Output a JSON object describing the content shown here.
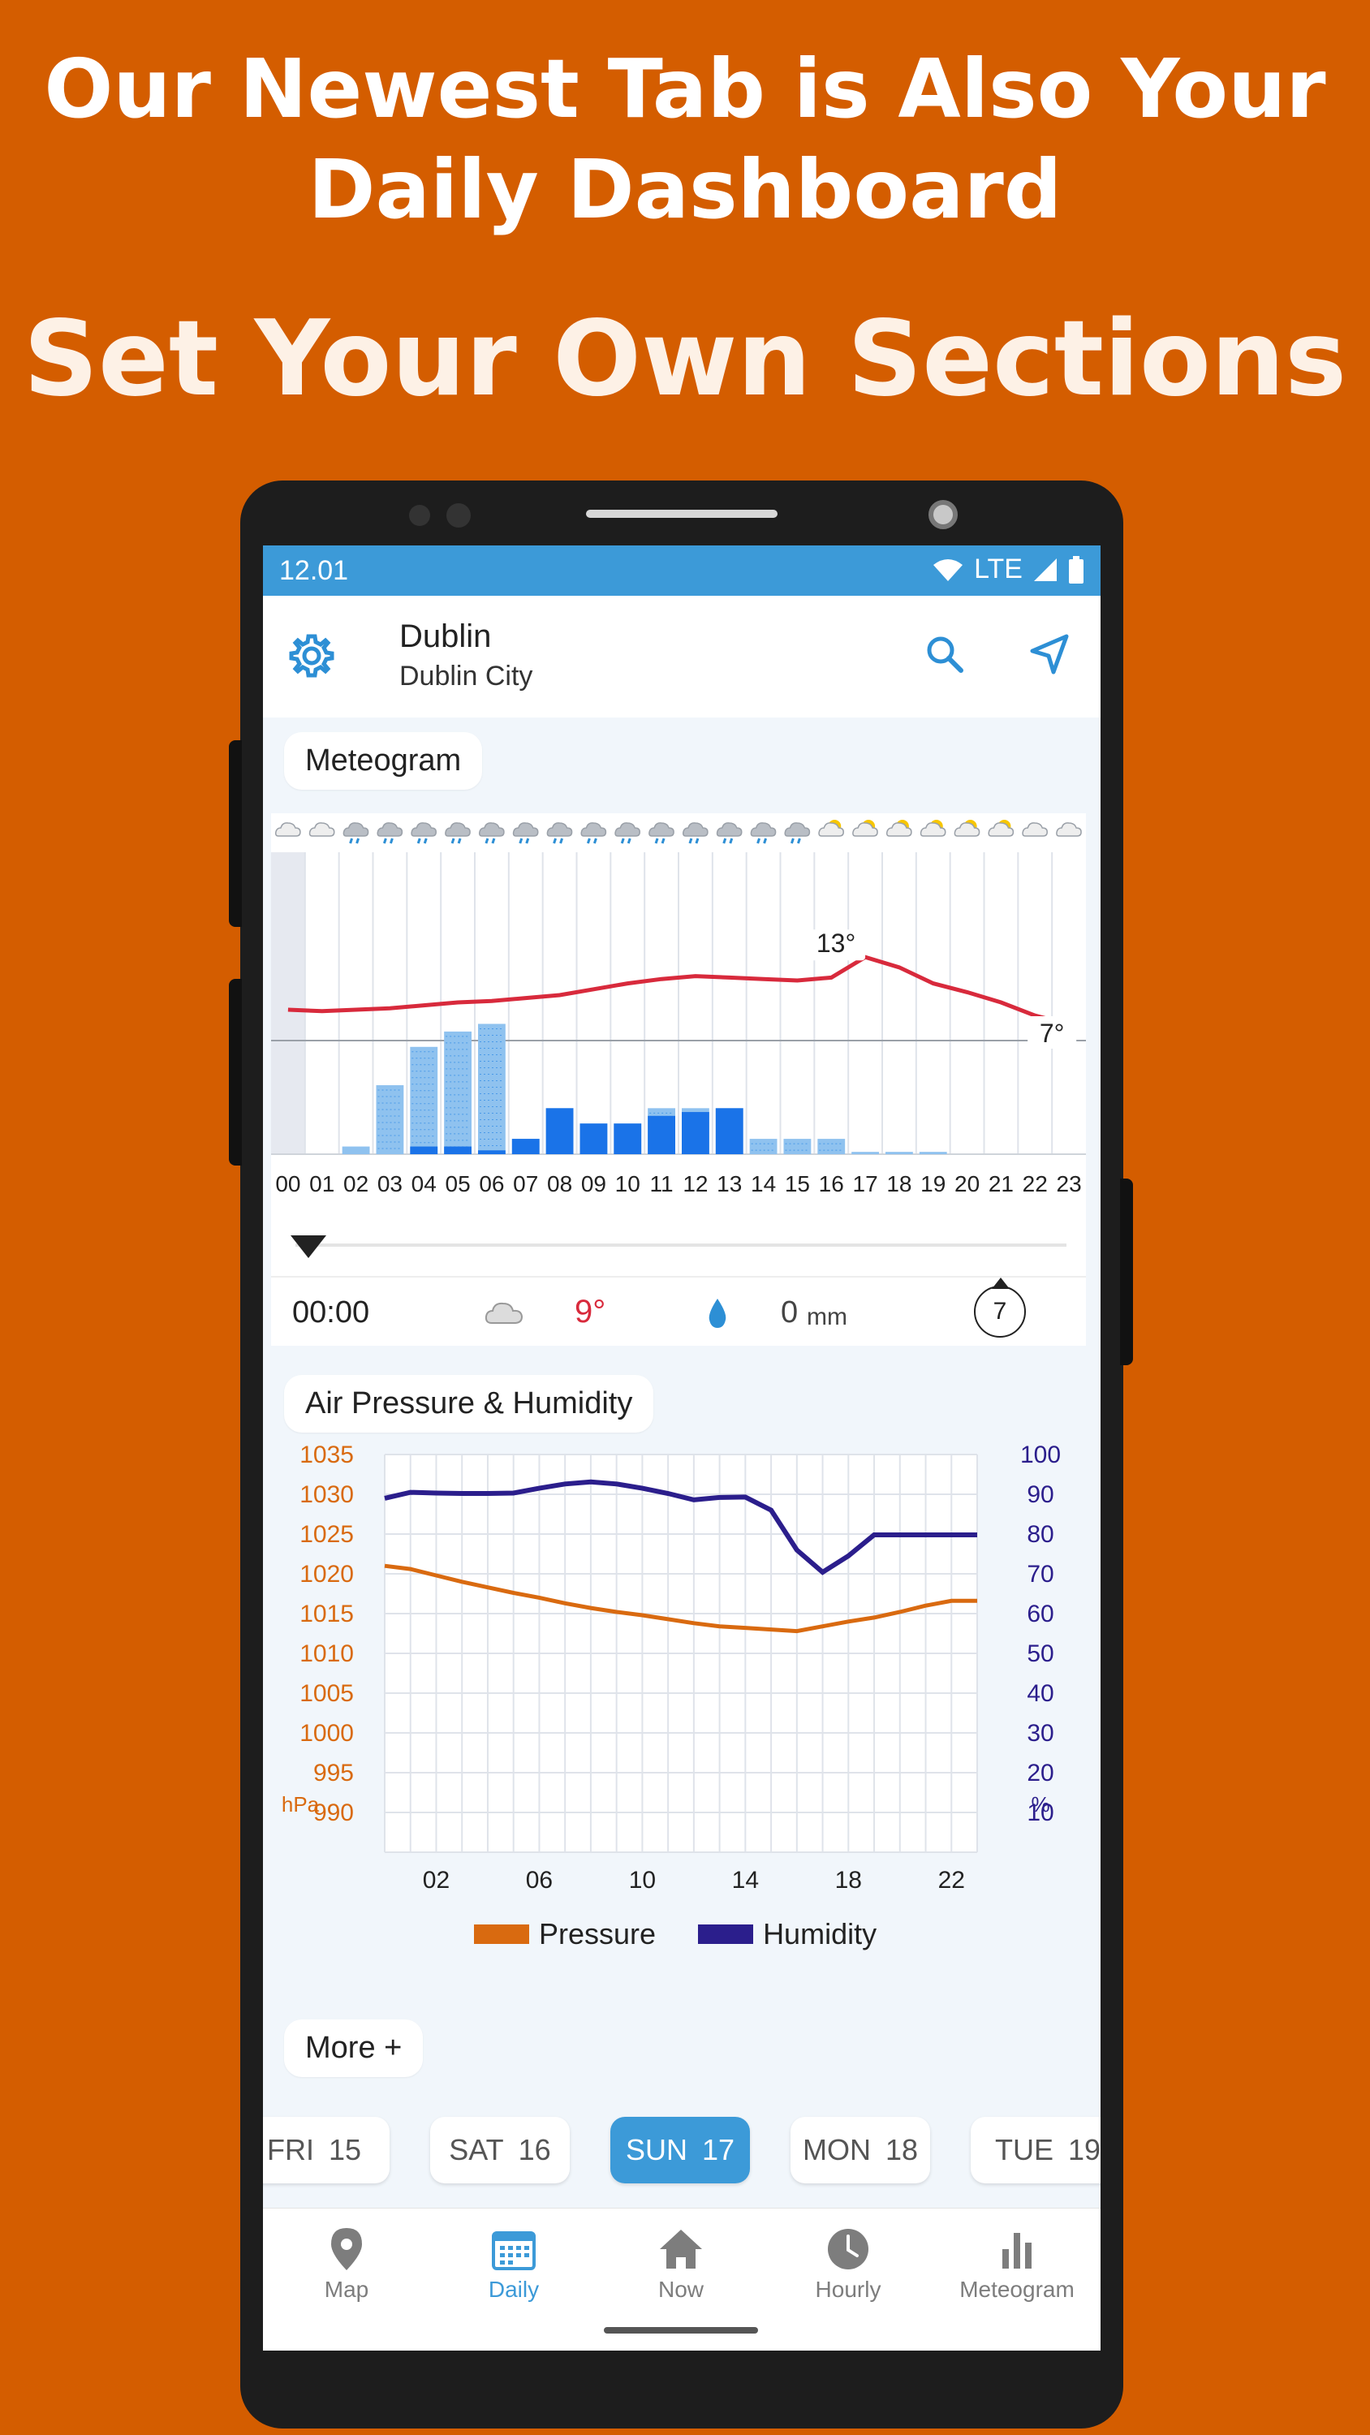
{
  "promo": {
    "headline_line1": "Our Newest Tab is Also Your",
    "headline_line2": "Daily Dashboard",
    "subheadline": "Set Your Own Sections"
  },
  "status_bar": {
    "time": "12.01",
    "network": "LTE"
  },
  "app_bar": {
    "city": "Dublin",
    "subtitle": "Dublin City"
  },
  "meteogram": {
    "section_title": "Meteogram",
    "hours": [
      "00",
      "01",
      "02",
      "03",
      "04",
      "05",
      "06",
      "07",
      "08",
      "09",
      "10",
      "11",
      "12",
      "13",
      "14",
      "15",
      "16",
      "17",
      "18",
      "19",
      "20",
      "21",
      "22",
      "23"
    ],
    "temperature_label_max": "13°",
    "temperature_label_min": "7°",
    "readout": {
      "time": "00:00",
      "temperature": "9°",
      "precip_value": "0",
      "precip_unit": "mm",
      "wind": "7"
    },
    "chart_data": {
      "type": "bar",
      "categories": [
        "00",
        "01",
        "02",
        "03",
        "04",
        "05",
        "06",
        "07",
        "08",
        "09",
        "10",
        "11",
        "12",
        "13",
        "14",
        "15",
        "16",
        "17",
        "18",
        "19",
        "20",
        "21",
        "22",
        "23"
      ],
      "series": [
        {
          "name": "Temperature",
          "type": "line",
          "values": [
            9,
            8.9,
            9,
            9.1,
            9.3,
            9.5,
            9.6,
            9.8,
            10,
            10.4,
            10.8,
            11.1,
            11.3,
            11.2,
            11.1,
            11,
            11.2,
            12.6,
            11.9,
            10.8,
            10.2,
            9.5,
            8.6,
            8
          ]
        },
        {
          "name": "Precipitation (light)",
          "type": "bar",
          "values": [
            0,
            0,
            0.1,
            0.9,
            1.4,
            1.6,
            1.7,
            0.2,
            0.6,
            0.4,
            0.4,
            0.6,
            0.6,
            0.6,
            0.2,
            0.2,
            0.2,
            0.03,
            0.03,
            0.03,
            0,
            0,
            0,
            0
          ]
        },
        {
          "name": "Precipitation (heavy)",
          "type": "bar",
          "values": [
            0,
            0,
            0,
            0,
            0.1,
            0.1,
            0.05,
            0.2,
            0.6,
            0.4,
            0.4,
            0.5,
            0.55,
            0.6,
            0,
            0,
            0,
            0,
            0,
            0,
            0,
            0,
            0,
            0
          ]
        }
      ],
      "weather_icons": [
        "cloudy",
        "cloudy",
        "rain",
        "rain",
        "rain",
        "rain",
        "rain",
        "rain",
        "rain",
        "rain",
        "rain",
        "rain",
        "rain",
        "rain",
        "rain",
        "rain",
        "sun-cloud",
        "sun-cloud",
        "sun-cloud",
        "sun-cloud",
        "sun-cloud",
        "sun-cloud",
        "cloudy",
        "cloudy"
      ]
    }
  },
  "pressure_humidity": {
    "section_title": "Air Pressure & Humidity",
    "left_axis_unit": "hPa",
    "right_axis_unit": "%",
    "legend_pressure": "Pressure",
    "legend_humidity": "Humidity",
    "colors": {
      "pressure": "#D96A10",
      "humidity": "#2B1E8C"
    },
    "chart_data": {
      "type": "line",
      "x": [
        0,
        1,
        2,
        3,
        4,
        5,
        6,
        7,
        8,
        9,
        10,
        11,
        12,
        13,
        14,
        15,
        16,
        17,
        18,
        19,
        20,
        21,
        22,
        23
      ],
      "x_ticks": [
        "02",
        "06",
        "10",
        "14",
        "18",
        "22"
      ],
      "y_left_ticks": [
        "1035",
        "1030",
        "1025",
        "1020",
        "1015",
        "1010",
        "1005",
        "1000",
        "995",
        "990"
      ],
      "y_right_ticks": [
        "100",
        "90",
        "80",
        "70",
        "60",
        "50",
        "40",
        "30",
        "20",
        "10"
      ],
      "ylim_left": [
        985,
        1035
      ],
      "ylim_right": [
        0,
        100
      ],
      "series": [
        {
          "name": "Pressure",
          "axis": "left",
          "values": [
            1021,
            1020.6,
            1019.8,
            1019,
            1018.3,
            1017.6,
            1017,
            1016.3,
            1015.7,
            1015.2,
            1014.8,
            1014.3,
            1013.8,
            1013.4,
            1013.2,
            1013,
            1012.8,
            1013.4,
            1014,
            1014.5,
            1015.2,
            1016,
            1016.6,
            1016.6
          ]
        },
        {
          "name": "Humidity",
          "axis": "right",
          "values": [
            89,
            90.5,
            90.3,
            90.2,
            90.2,
            90.3,
            91.5,
            92.6,
            93.1,
            92.6,
            91.5,
            90.2,
            88.6,
            89.2,
            89.3,
            86,
            76,
            70.4,
            74.5,
            79.8,
            79.8,
            79.8,
            79.8,
            79.8
          ]
        }
      ]
    }
  },
  "more_button": "More +",
  "day_tabs": [
    {
      "day": "FRI",
      "date": "15"
    },
    {
      "day": "SAT",
      "date": "16"
    },
    {
      "day": "SUN",
      "date": "17"
    },
    {
      "day": "MON",
      "date": "18"
    },
    {
      "day": "TUE",
      "date": "19"
    }
  ],
  "bottom_nav": [
    {
      "label": "Map",
      "icon": "map-pin-icon"
    },
    {
      "label": "Daily",
      "icon": "calendar-icon"
    },
    {
      "label": "Now",
      "icon": "home-icon"
    },
    {
      "label": "Hourly",
      "icon": "clock-icon"
    },
    {
      "label": "Meteogram",
      "icon": "bar-chart-icon"
    }
  ]
}
